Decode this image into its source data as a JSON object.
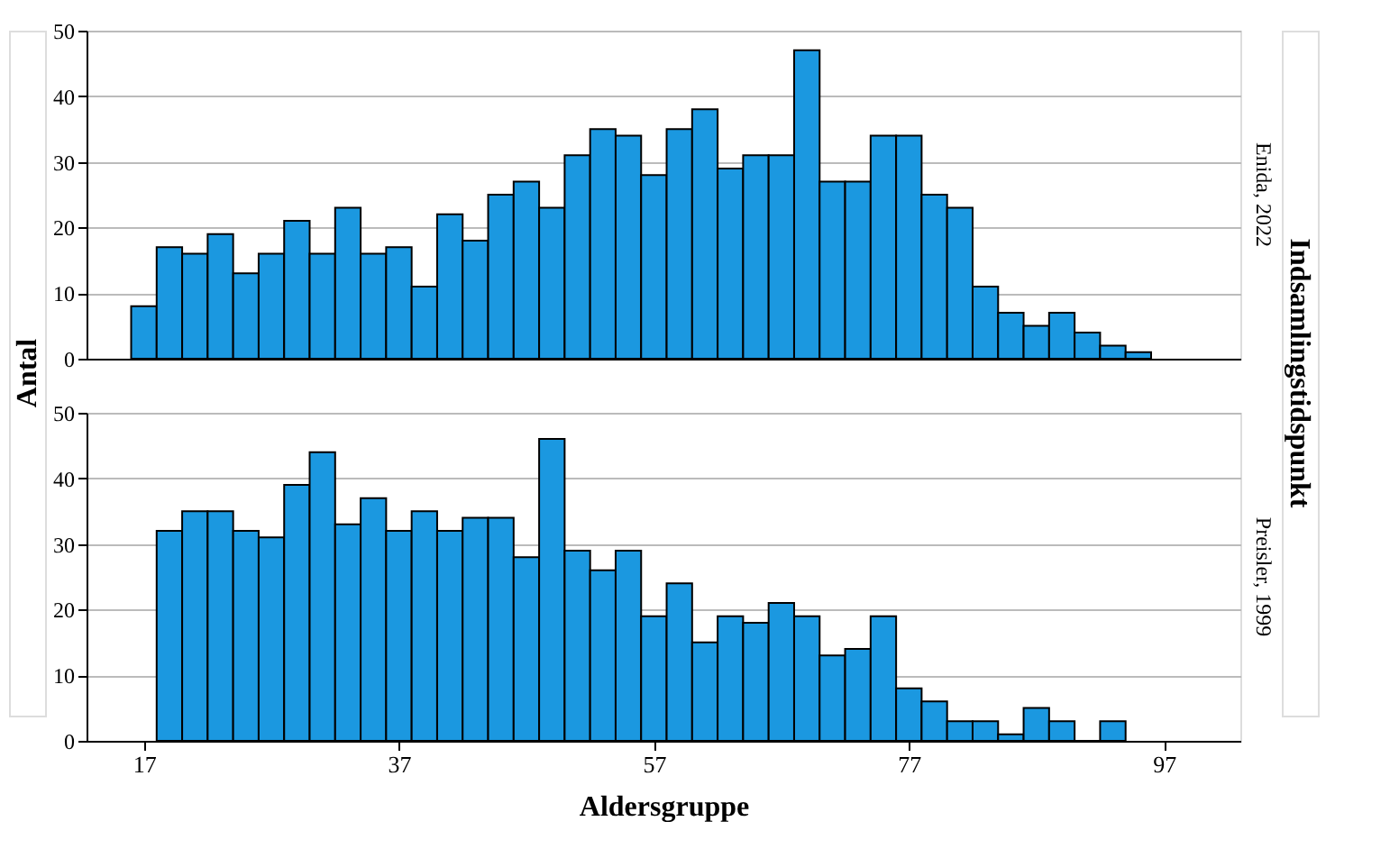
{
  "chart_data": [
    {
      "type": "histogram",
      "title": "Enida, 2022",
      "ylabel": "Antal",
      "y2label": "Indsamlingstidspunkt",
      "bins": [
        16,
        18,
        20,
        22,
        24,
        26,
        28,
        30,
        32,
        34,
        36,
        38,
        40,
        42,
        44,
        46,
        48,
        50,
        52,
        54,
        56,
        58,
        60,
        62,
        64,
        66,
        68,
        70,
        72,
        74,
        76,
        78,
        80,
        82,
        84,
        86,
        88,
        90,
        92,
        94,
        96
      ],
      "values": [
        8,
        17,
        16,
        19,
        13,
        16,
        21,
        16,
        23,
        16,
        17,
        11,
        22,
        18,
        25,
        27,
        23,
        31,
        35,
        34,
        28,
        35,
        38,
        29,
        31,
        31,
        47,
        27,
        27,
        34,
        34,
        25,
        23,
        11,
        7,
        5,
        7,
        4,
        2,
        1
      ],
      "color": "#1b98e0",
      "xlim": [
        12.5,
        103
      ],
      "ylim": [
        0,
        50
      ],
      "yticks": [
        0,
        10,
        20,
        30,
        40,
        50
      ],
      "grid": "y",
      "tick_labels": "y"
    },
    {
      "type": "histogram",
      "title": "Preisler, 1999",
      "xlabel": "Aldersgruppe",
      "bins": [
        18,
        20,
        22,
        24,
        26,
        28,
        30,
        32,
        34,
        36,
        38,
        40,
        42,
        44,
        46,
        48,
        50,
        52,
        54,
        56,
        58,
        60,
        62,
        64,
        66,
        68,
        70,
        72,
        74,
        76,
        78,
        80,
        82,
        84,
        86,
        88,
        90,
        92,
        94
      ],
      "values": [
        32,
        35,
        35,
        32,
        31,
        39,
        44,
        33,
        37,
        32,
        35,
        32,
        34,
        34,
        28,
        46,
        29,
        26,
        29,
        19,
        24,
        15,
        19,
        18,
        21,
        19,
        13,
        14,
        19,
        8,
        6,
        3,
        3,
        1,
        5,
        3,
        0,
        3
      ],
      "color": "#1b98e0",
      "xlim": [
        12.5,
        103
      ],
      "xticks": [
        17,
        37,
        57,
        77,
        97
      ],
      "ylim": [
        0,
        50
      ],
      "yticks": [
        0,
        10,
        20,
        30,
        40,
        50
      ],
      "grid": "y"
    }
  ]
}
